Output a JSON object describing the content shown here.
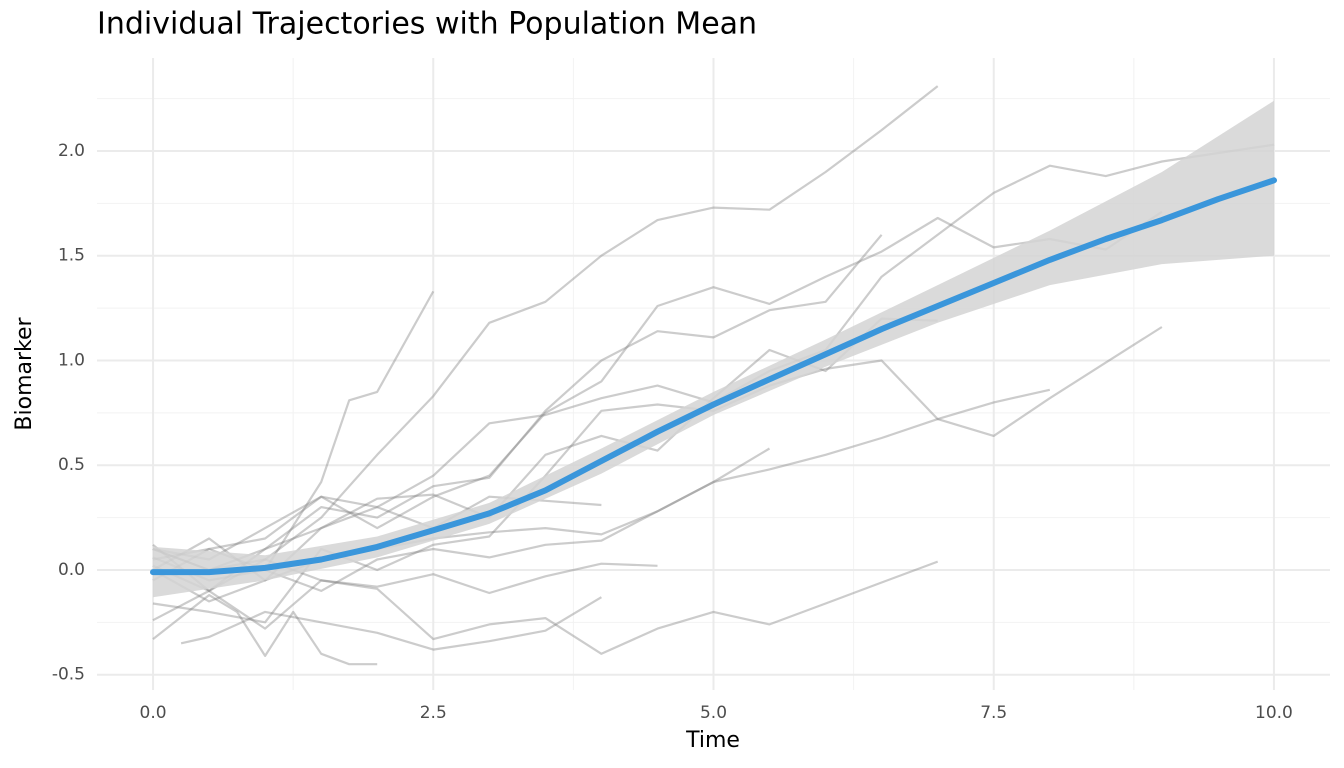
{
  "chart_data": {
    "type": "line",
    "title": "Individual Trajectories with Population Mean",
    "x_label": "Time",
    "y_label": "Biomarker",
    "xlim": [
      -0.5,
      10.5
    ],
    "ylim": [
      -0.573,
      2.444
    ],
    "xticks": [
      {
        "value": 0,
        "label": "0.0"
      },
      {
        "value": 2.5,
        "label": "2.5"
      },
      {
        "value": 5,
        "label": "5.0"
      },
      {
        "value": 7.5,
        "label": "7.5"
      },
      {
        "value": 10,
        "label": "10.0"
      }
    ],
    "yticks": [
      -0.5,
      {
        "value": 0,
        "label": "0.0"
      },
      0.5,
      {
        "value": 1,
        "label": "1.0"
      },
      1.5,
      {
        "value": 2,
        "label": "2.0"
      }
    ],
    "xminor": [
      1.25,
      3.75,
      6.25,
      8.75
    ],
    "yminor": [
      -0.25,
      0.25,
      0.75,
      1.25,
      1.75,
      2.25
    ],
    "grid": true,
    "trajectories": {
      "color": "#808080",
      "opacity": 0.4,
      "series": [
        {
          "x": [
            0,
            0.5,
            1,
            1.5,
            1.75,
            2,
            2.5
          ],
          "values": [
            0.05,
            0.1,
            0.0,
            0.42,
            0.81,
            0.85,
            1.33
          ]
        },
        {
          "x": [
            0,
            0.5,
            1,
            1.5,
            2,
            2.5,
            3,
            3.5,
            4,
            4.5,
            5,
            5.5,
            6,
            6.5,
            7
          ],
          "values": [
            0.12,
            -0.1,
            0.05,
            0.25,
            0.55,
            0.83,
            1.18,
            1.28,
            1.5,
            1.67,
            1.73,
            1.72,
            1.9,
            2.1,
            2.31
          ]
        },
        {
          "x": [
            0,
            0.5,
            1,
            1.5,
            2,
            2.5,
            3,
            3.5,
            4,
            4.5,
            5,
            5.5,
            6,
            6.5,
            7,
            7.5,
            8,
            8.5,
            9,
            10
          ],
          "values": [
            0.0,
            0.15,
            -0.05,
            0.2,
            0.3,
            0.45,
            0.7,
            0.74,
            0.82,
            0.88,
            0.8,
            0.95,
            1.05,
            1.4,
            1.6,
            1.8,
            1.93,
            1.88,
            1.95,
            2.03
          ]
        },
        {
          "x": [
            0,
            0.5,
            1,
            1.5,
            2,
            2.5,
            3,
            3.5,
            4,
            4.5,
            5,
            5.5,
            6,
            6.5,
            7,
            7.5,
            8,
            8.5,
            9
          ],
          "values": [
            -0.05,
            0.1,
            0.15,
            0.35,
            0.2,
            0.35,
            0.45,
            0.75,
            0.9,
            1.26,
            1.35,
            1.27,
            1.4,
            1.52,
            1.68,
            1.54,
            1.58,
            1.53,
            1.71
          ]
        },
        {
          "x": [
            0,
            0.5,
            1,
            1.5,
            2,
            2.5,
            3,
            3.5,
            4,
            4.5,
            5,
            5.5,
            6,
            6.5
          ],
          "values": [
            0.02,
            -0.1,
            0.1,
            0.3,
            0.25,
            0.4,
            0.44,
            0.76,
            1.0,
            1.14,
            1.11,
            1.24,
            1.28,
            1.6
          ]
        },
        {
          "x": [
            0,
            0.5,
            1,
            1.5,
            2,
            2.5,
            3,
            3.5,
            4,
            4.5,
            5,
            5.5,
            6,
            6.5,
            7
          ],
          "values": [
            0.1,
            0.0,
            0.1,
            0.2,
            0.34,
            0.36,
            0.25,
            0.55,
            0.64,
            0.57,
            0.82,
            1.05,
            0.95,
            1.2,
            1.19
          ]
        },
        {
          "x": [
            0,
            0.5,
            1,
            1.5,
            2,
            2.5,
            3,
            3.5,
            4,
            4.5,
            5,
            5.5,
            6,
            6.5,
            7,
            7.5,
            8,
            8.5,
            9
          ],
          "values": [
            -0.16,
            -0.2,
            -0.25,
            0.1,
            0.0,
            0.12,
            0.16,
            0.45,
            0.76,
            0.79,
            0.76,
            0.88,
            0.96,
            1.0,
            0.72,
            0.64,
            0.82,
            0.99,
            1.16
          ]
        },
        {
          "x": [
            0,
            0.5,
            1,
            1.5,
            2,
            2.5,
            3,
            3.5,
            4,
            4.5,
            5,
            5.5,
            6,
            6.5,
            7,
            7.5,
            8
          ],
          "values": [
            0.06,
            -0.05,
            0.0,
            -0.1,
            0.05,
            0.1,
            0.06,
            0.12,
            0.14,
            0.28,
            0.42,
            0.48,
            0.55,
            0.63,
            0.72,
            0.8,
            0.86
          ]
        },
        {
          "x": [
            0,
            0.5,
            1,
            1.5,
            2,
            2.5,
            3,
            3.5,
            4,
            4.5,
            5,
            5.5
          ],
          "values": [
            0.0,
            -0.15,
            -0.05,
            0.05,
            0.1,
            0.15,
            0.18,
            0.2,
            0.17,
            0.28,
            0.42,
            0.58
          ]
        },
        {
          "x": [
            0,
            0.5,
            1,
            1.5,
            2,
            2.5,
            3,
            3.5,
            4,
            4.5,
            5,
            5.5,
            6,
            6.5,
            7
          ],
          "values": [
            -0.24,
            -0.1,
            -0.28,
            -0.05,
            -0.09,
            -0.33,
            -0.26,
            -0.23,
            -0.4,
            -0.28,
            -0.2,
            -0.26,
            -0.16,
            -0.06,
            0.04
          ]
        },
        {
          "x": [
            0,
            0.5,
            1,
            1.5,
            2,
            2.5,
            3,
            3.5,
            4,
            4.5
          ],
          "values": [
            0.1,
            0.0,
            0.05,
            -0.05,
            -0.08,
            -0.02,
            -0.11,
            -0.03,
            0.03,
            0.02
          ]
        },
        {
          "x": [
            0.25,
            0.5,
            1,
            1.5,
            2,
            2.5,
            3,
            3.5,
            4
          ],
          "values": [
            -0.35,
            -0.32,
            -0.2,
            -0.25,
            -0.3,
            -0.38,
            -0.34,
            -0.29,
            -0.13
          ]
        },
        {
          "x": [
            0,
            0.5,
            0.75,
            1,
            1.25,
            1.5,
            1.75,
            2
          ],
          "values": [
            -0.33,
            -0.12,
            -0.2,
            -0.41,
            -0.2,
            -0.4,
            -0.45,
            -0.45
          ]
        },
        {
          "x": [
            0,
            0.5,
            1,
            1.5,
            2,
            2.5,
            3,
            3.5,
            4
          ],
          "values": [
            0.1,
            0.05,
            0.2,
            0.35,
            0.3,
            0.2,
            0.35,
            0.33,
            0.31
          ]
        }
      ]
    },
    "band": {
      "color": "#d4d4d4",
      "x": [
        0,
        1,
        2,
        3,
        4,
        5,
        6,
        7,
        8,
        9,
        10
      ],
      "lower": [
        -0.13,
        -0.05,
        0.06,
        0.22,
        0.46,
        0.74,
        0.97,
        1.18,
        1.36,
        1.46,
        1.5
      ],
      "upper": [
        0.11,
        0.07,
        0.16,
        0.32,
        0.58,
        0.85,
        1.1,
        1.36,
        1.62,
        1.9,
        2.24
      ]
    },
    "mean": {
      "color": "#3a96db",
      "x": [
        0,
        0.5,
        1,
        1.5,
        2,
        2.5,
        3,
        3.5,
        4,
        4.5,
        5,
        5.5,
        6,
        6.5,
        7,
        7.5,
        8,
        8.5,
        9,
        9.5,
        10
      ],
      "values": [
        -0.01,
        -0.01,
        0.01,
        0.05,
        0.11,
        0.19,
        0.27,
        0.38,
        0.52,
        0.66,
        0.79,
        0.91,
        1.03,
        1.15,
        1.26,
        1.37,
        1.48,
        1.58,
        1.67,
        1.77,
        1.86
      ]
    }
  }
}
